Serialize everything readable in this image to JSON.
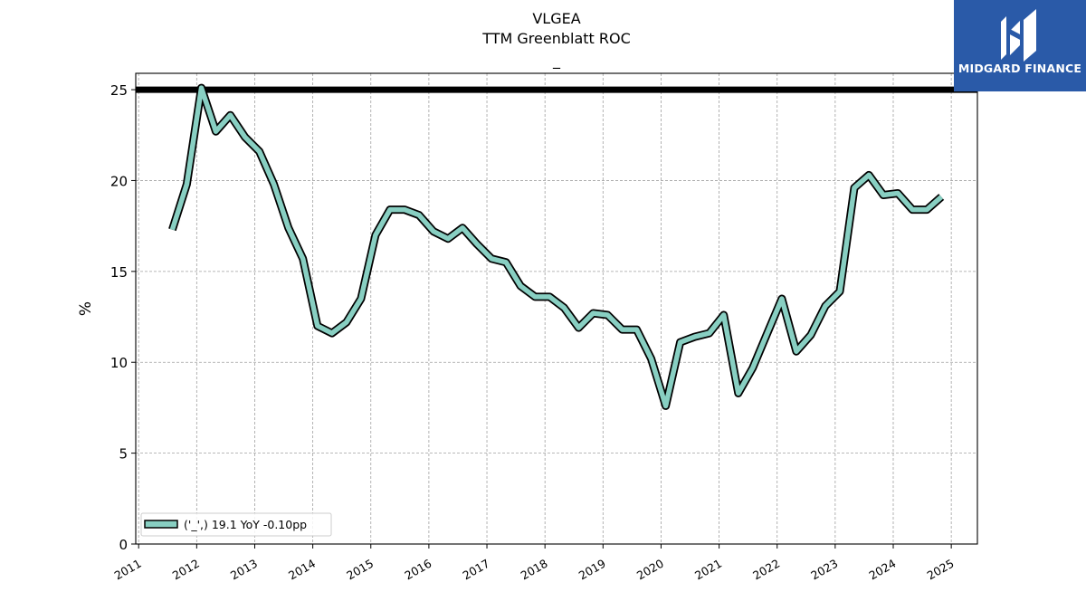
{
  "chart_data": {
    "type": "line",
    "title": "VLGEA",
    "subtitle": "TTM Greenblatt ROC",
    "subtitle2": "_",
    "ylabel": "%",
    "xlabel": "",
    "ylim": [
      0,
      25.9
    ],
    "xlim": [
      2010.95,
      2025.45
    ],
    "grid": true,
    "legend_position": "bottom-left",
    "y_ticks": [
      0,
      5,
      10,
      15,
      20,
      25
    ],
    "x_tick_labels": [
      "2011",
      "2012",
      "2013",
      "2014",
      "2015",
      "2016",
      "2017",
      "2018",
      "2019",
      "2020",
      "2021",
      "2022",
      "2023",
      "2024",
      "2025"
    ],
    "reference_line": {
      "y": 25,
      "color": "#000000"
    },
    "series": [
      {
        "name": "('_',) 19.1 YoY -0.10pp",
        "color": "#88cfc2",
        "edge_color": "#000000",
        "x": [
          2011.58,
          2011.83,
          2012.08,
          2012.33,
          2012.58,
          2012.83,
          2013.08,
          2013.33,
          2013.58,
          2013.83,
          2014.08,
          2014.33,
          2014.58,
          2014.83,
          2015.08,
          2015.33,
          2015.58,
          2015.83,
          2016.08,
          2016.33,
          2016.58,
          2016.83,
          2017.08,
          2017.33,
          2017.58,
          2017.83,
          2018.08,
          2018.33,
          2018.58,
          2018.83,
          2019.08,
          2019.33,
          2019.58,
          2019.83,
          2020.08,
          2020.33,
          2020.58,
          2020.83,
          2021.08,
          2021.33,
          2021.58,
          2021.83,
          2022.08,
          2022.33,
          2022.58,
          2022.83,
          2023.08,
          2023.33,
          2023.58,
          2023.83,
          2024.08,
          2024.33,
          2024.58,
          2024.83
        ],
        "y": [
          17.3,
          19.8,
          25.1,
          22.7,
          23.6,
          22.4,
          21.6,
          19.8,
          17.4,
          15.7,
          12.0,
          11.6,
          12.2,
          13.5,
          17.0,
          18.4,
          18.4,
          18.1,
          17.2,
          16.8,
          17.4,
          16.5,
          15.7,
          15.5,
          14.2,
          13.6,
          13.6,
          13.0,
          11.9,
          12.7,
          12.6,
          11.8,
          11.8,
          10.2,
          7.6,
          11.1,
          11.4,
          11.6,
          12.6,
          8.3,
          9.7,
          11.6,
          13.5,
          10.6,
          11.5,
          13.1,
          13.9,
          19.6,
          20.3,
          19.2,
          19.3,
          18.4,
          18.4,
          19.1
        ]
      }
    ]
  },
  "logo": {
    "text": "MIDGARD FINANCE",
    "icon": "midgard-m-logo-icon"
  }
}
